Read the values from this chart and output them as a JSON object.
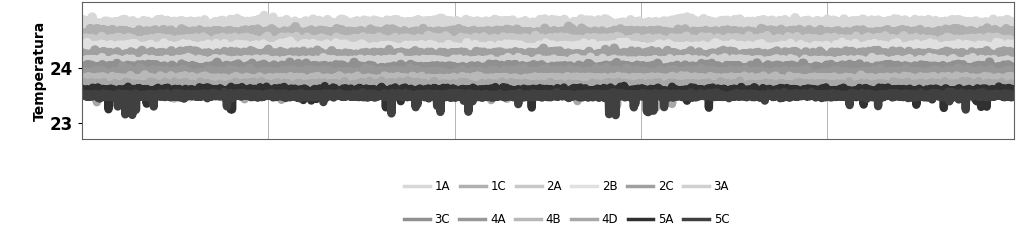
{
  "ylabel": "Temperatura",
  "yticks": [
    23,
    24
  ],
  "ylim": [
    22.7,
    25.2
  ],
  "xlim": [
    0,
    1000
  ],
  "xtick_positions": [
    200,
    400,
    600,
    800
  ],
  "background_color": "#ffffff",
  "series": [
    {
      "label": "1A",
      "base": 24.8,
      "noise_std": 0.04,
      "color": "#d8d8d8",
      "lw": 7
    },
    {
      "label": "1C",
      "base": 24.62,
      "noise_std": 0.04,
      "color": "#b0b0b0",
      "lw": 7
    },
    {
      "label": "2A",
      "base": 24.48,
      "noise_std": 0.04,
      "color": "#c8c8c8",
      "lw": 7
    },
    {
      "label": "2B",
      "base": 24.35,
      "noise_std": 0.04,
      "color": "#e0e0e0",
      "lw": 7
    },
    {
      "label": "2C",
      "base": 24.22,
      "noise_std": 0.04,
      "color": "#a0a0a0",
      "lw": 7
    },
    {
      "label": "3A",
      "base": 24.1,
      "noise_std": 0.03,
      "color": "#d0d0d0",
      "lw": 7
    },
    {
      "label": "3C",
      "base": 23.98,
      "noise_std": 0.04,
      "color": "#909090",
      "lw": 7
    },
    {
      "label": "4A",
      "base": 23.88,
      "noise_std": 0.04,
      "color": "#989898",
      "lw": 7
    },
    {
      "label": "4B",
      "base": 23.78,
      "noise_std": 0.03,
      "color": "#b8b8b8",
      "lw": 7
    },
    {
      "label": "4D",
      "base": 23.68,
      "noise_std": 0.03,
      "color": "#a8a8a8",
      "lw": 6
    },
    {
      "label": "5A",
      "base": 23.58,
      "noise_std": 0.03,
      "color": "#303030",
      "lw": 6
    },
    {
      "label": "5C",
      "base": 23.5,
      "noise_std": 0.02,
      "color": "#404040",
      "lw": 6
    }
  ],
  "legend_order_row1": [
    "1A",
    "1C",
    "2A",
    "2B",
    "2C",
    "3A"
  ],
  "legend_order_row2": [
    "3C",
    "4A",
    "4B",
    "4D",
    "5A",
    "5C"
  ],
  "legend_colors_row1": [
    "#d8d8d8",
    "#b0b0b0",
    "#c8c8c8",
    "#e0e0e0",
    "#a0a0a0",
    "#d0d0d0"
  ],
  "legend_colors_row2": [
    "#909090",
    "#989898",
    "#b8b8b8",
    "#a8a8a8",
    "#303030",
    "#404040"
  ]
}
